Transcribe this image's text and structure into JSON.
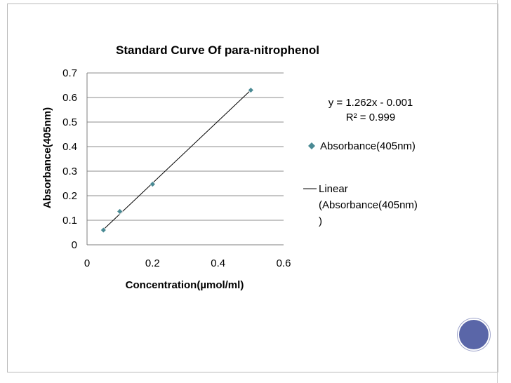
{
  "chart_data": {
    "type": "scatter",
    "title": "Standard Curve Of para-nitrophenol",
    "xlabel": "Concentration(µmol/ml)",
    "ylabel": "Absorbance(405nm)",
    "xlim": [
      0,
      0.6
    ],
    "ylim": [
      0,
      0.7
    ],
    "xticks": [
      "0",
      "0.2",
      "0.4",
      "0.6"
    ],
    "yticks": [
      "0",
      "0.1",
      "0.2",
      "0.3",
      "0.4",
      "0.5",
      "0.6",
      "0.7"
    ],
    "grid": "horizontal",
    "legend_position": "right",
    "series": [
      {
        "name": "Absorbance(405nm)",
        "marker": "diamond",
        "color": "#4a8a94",
        "x": [
          0.05,
          0.1,
          0.2,
          0.5
        ],
        "y": [
          0.06,
          0.136,
          0.247,
          0.63
        ]
      }
    ],
    "trendline": {
      "legend_lines": [
        "Linear",
        "(Absorbance(405nm)",
        ")"
      ],
      "slope": 1.262,
      "intercept": -0.001,
      "x_range": [
        0.05,
        0.5
      ],
      "color": "#000000"
    },
    "annotations": [
      "y = 1.262x - 0.001",
      "R² = 0.999"
    ]
  },
  "theme": {
    "frame_color": "#b9b9b9",
    "accent_circle": "#5a66a8",
    "grid_color": "#8c8c8c",
    "marker_color": "#4a8a94"
  }
}
